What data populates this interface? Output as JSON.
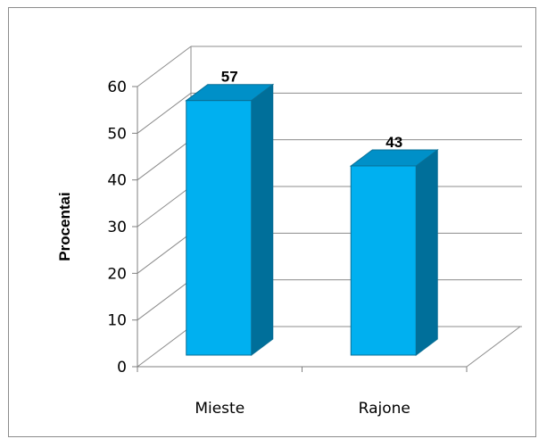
{
  "chart_data": {
    "type": "bar",
    "style": "3d-column",
    "title": "",
    "xlabel": "",
    "ylabel": "Procentai",
    "categories": [
      "Mieste",
      "Rajone"
    ],
    "values": [
      57,
      43
    ],
    "data_labels": [
      "57",
      "43"
    ],
    "ylim": [
      0,
      60
    ],
    "yticks": [
      0,
      10,
      20,
      30,
      40,
      50,
      60
    ],
    "ytick_labels": [
      "0",
      "10",
      "20",
      "30",
      "40",
      "50",
      "60"
    ],
    "grid": true,
    "legend": "none",
    "colors": {
      "bar_front": "#00b0f0",
      "bar_top": "#0090c8",
      "bar_side": "#006f9a",
      "bar_edge": "#0a6f96",
      "gridline": "#8c8c8c",
      "axis": "#7f7f7f"
    }
  }
}
